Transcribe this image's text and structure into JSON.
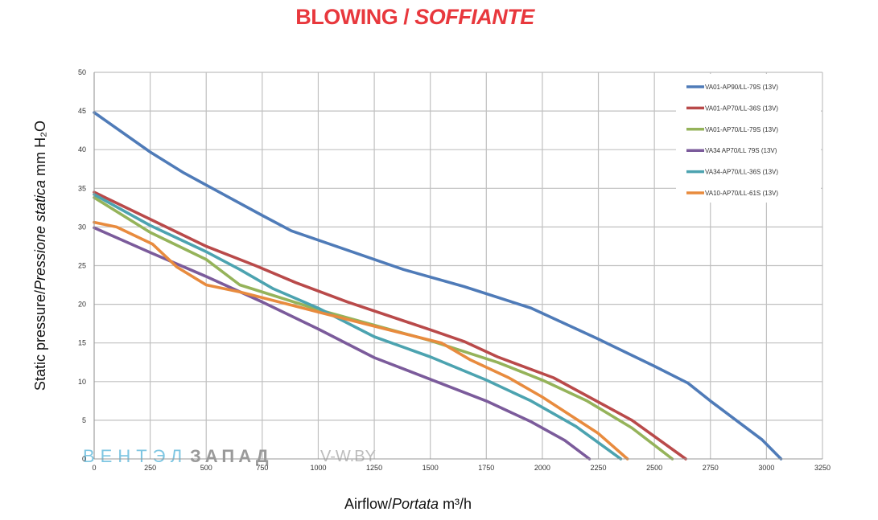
{
  "title": {
    "main": "BLOWING",
    "separator": "/",
    "italic": "SOFFIANTE"
  },
  "watermark": {
    "part1": "ВЕНТЭЛ",
    "part2": "ЗАПАД",
    "part3": "V-W.BY"
  },
  "colors": {
    "title": "#e8383d",
    "grid": "#c0c0c0"
  },
  "chart_data": {
    "type": "line",
    "title": "BLOWING / SOFFIANTE",
    "xlabel": {
      "normal": "Airflow/",
      "italic": "Portata",
      "unit": " m³/h"
    },
    "ylabel": {
      "normal1": "Static pressure/",
      "italic": "Pressione statica",
      "unit": " mm H₂O"
    },
    "xlim": [
      0,
      3250
    ],
    "ylim": [
      0,
      50
    ],
    "x_ticks": [
      "0",
      "250",
      "500",
      "750",
      "1000",
      "1250",
      "1500",
      "1750",
      "2000",
      "2250",
      "2500",
      "2750",
      "3000",
      "3250"
    ],
    "y_ticks": [
      "0",
      "5",
      "10",
      "15",
      "20",
      "25",
      "30",
      "35",
      "40",
      "45",
      "50"
    ],
    "grid": true,
    "legend_position": "top-right",
    "series": [
      {
        "name": "VA01-AP90/LL-79S (13V)",
        "color": "#4f7bb8",
        "points": [
          [
            0,
            44.8
          ],
          [
            250,
            39.7
          ],
          [
            400,
            37
          ],
          [
            750,
            31.5
          ],
          [
            880,
            29.5
          ],
          [
            1380,
            24.5
          ],
          [
            1650,
            22.3
          ],
          [
            1950,
            19.5
          ],
          [
            2250,
            15.5
          ],
          [
            2500,
            12
          ],
          [
            2650,
            9.8
          ],
          [
            2750,
            7.5
          ],
          [
            2980,
            2.5
          ],
          [
            3065,
            0
          ]
        ]
      },
      {
        "name": "VA01-AP70/LL-36S (13V)",
        "color": "#b94a4a",
        "points": [
          [
            0,
            34.5
          ],
          [
            250,
            31
          ],
          [
            500,
            27.5
          ],
          [
            720,
            25
          ],
          [
            900,
            22.8
          ],
          [
            1130,
            20.3
          ],
          [
            1500,
            16.7
          ],
          [
            1650,
            15.2
          ],
          [
            1800,
            13.2
          ],
          [
            2050,
            10.5
          ],
          [
            2400,
            5
          ],
          [
            2640,
            0
          ]
        ]
      },
      {
        "name": "VA01-AP70/LL-79S (13V)",
        "color": "#95b35a",
        "points": [
          [
            0,
            33.8
          ],
          [
            250,
            29.3
          ],
          [
            500,
            25.8
          ],
          [
            650,
            22.5
          ],
          [
            1000,
            19.3
          ],
          [
            1500,
            15.3
          ],
          [
            1800,
            12.5
          ],
          [
            2000,
            10.2
          ],
          [
            2200,
            7.5
          ],
          [
            2400,
            4
          ],
          [
            2580,
            0
          ]
        ]
      },
      {
        "name": "VA34 AP70/LL 79S (13V)",
        "color": "#7b5b9b",
        "points": [
          [
            0,
            29.9
          ],
          [
            250,
            26.7
          ],
          [
            500,
            23.6
          ],
          [
            750,
            20.3
          ],
          [
            1000,
            16.8
          ],
          [
            1250,
            13.1
          ],
          [
            1500,
            10.3
          ],
          [
            1750,
            7.5
          ],
          [
            1950,
            4.8
          ],
          [
            2100,
            2.4
          ],
          [
            2210,
            0
          ]
        ]
      },
      {
        "name": "VA34-AP70/LL-36S (13V)",
        "color": "#4ca3b0",
        "points": [
          [
            0,
            34.2
          ],
          [
            250,
            30.2
          ],
          [
            500,
            26.8
          ],
          [
            650,
            24.5
          ],
          [
            800,
            22
          ],
          [
            1000,
            19.5
          ],
          [
            1250,
            15.8
          ],
          [
            1500,
            13.2
          ],
          [
            1750,
            10.2
          ],
          [
            1950,
            7.5
          ],
          [
            2150,
            4.2
          ],
          [
            2350,
            0
          ]
        ]
      },
      {
        "name": "VA10-AP70/LL-61S (13V)",
        "color": "#e88b3e",
        "points": [
          [
            0,
            30.6
          ],
          [
            100,
            30
          ],
          [
            260,
            27.8
          ],
          [
            370,
            24.8
          ],
          [
            500,
            22.5
          ],
          [
            650,
            21.6
          ],
          [
            1000,
            19
          ],
          [
            1300,
            16.8
          ],
          [
            1550,
            15
          ],
          [
            1680,
            12.8
          ],
          [
            1850,
            10.5
          ],
          [
            2000,
            8
          ],
          [
            2250,
            3.3
          ],
          [
            2380,
            0
          ]
        ]
      }
    ]
  }
}
